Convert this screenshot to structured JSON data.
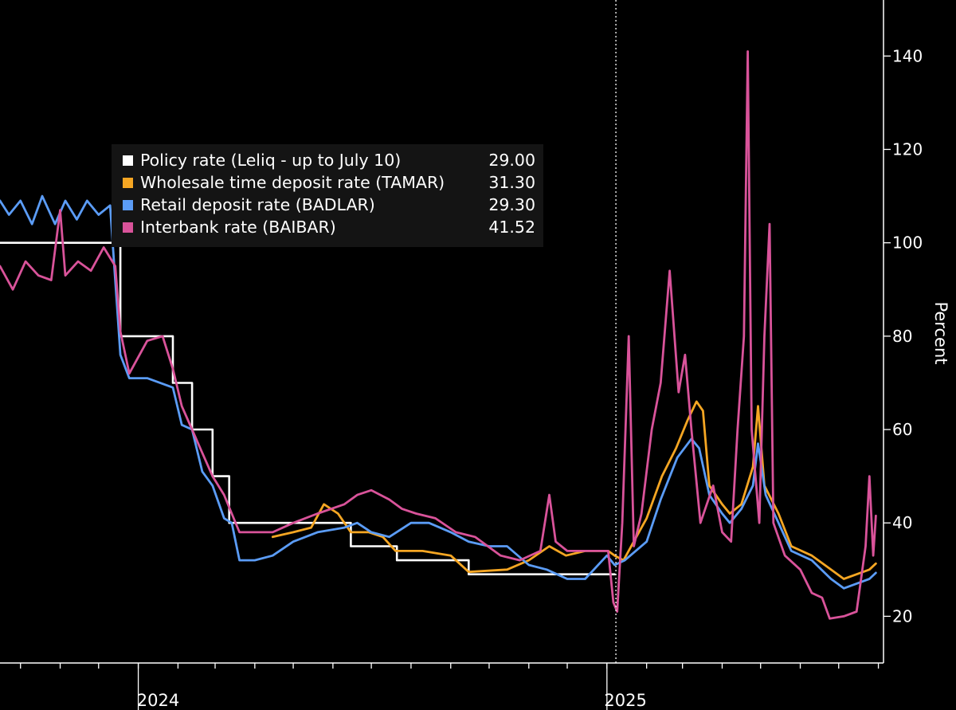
{
  "chart_data": {
    "type": "line",
    "title": "",
    "ylabel": "Percent",
    "ylim": [
      10,
      152
    ],
    "xlim": [
      "2023-09-15",
      "2025-08-05"
    ],
    "x_tick_labels": [
      {
        "label": "2024",
        "date": "2024-06-30"
      },
      {
        "label": "2025",
        "date": "2025-06-30"
      }
    ],
    "y_ticks": [
      20,
      40,
      60,
      80,
      100,
      120,
      140
    ],
    "marker_line": {
      "date": "2025-01-08",
      "style": "dotted"
    },
    "grid": false,
    "legend": {
      "placement": "top-left"
    },
    "colors": {
      "background": "#000000",
      "axis": "#ffffff"
    },
    "series": [
      {
        "name": "Policy rate (Leliq - up to July 10)",
        "latest": "29.00",
        "color": "#ffffff",
        "step": true,
        "points": [
          [
            "2023-09-15",
            100
          ],
          [
            "2023-12-18",
            80
          ],
          [
            "2024-01-28",
            70
          ],
          [
            "2024-02-12",
            60
          ],
          [
            "2024-02-28",
            50
          ],
          [
            "2024-03-12",
            40
          ],
          [
            "2024-05-02",
            40
          ],
          [
            "2024-06-15",
            35
          ],
          [
            "2024-07-21",
            32
          ],
          [
            "2024-09-15",
            29
          ],
          [
            "2025-01-07",
            29
          ]
        ]
      },
      {
        "name": "Wholesale time deposit rate (TAMAR)",
        "latest": "31.30",
        "color": "#f5a623",
        "step": false,
        "points": [
          [
            "2024-04-15",
            37
          ],
          [
            "2024-05-01",
            38
          ],
          [
            "2024-05-15",
            39
          ],
          [
            "2024-05-25",
            44
          ],
          [
            "2024-06-05",
            42
          ],
          [
            "2024-06-15",
            38
          ],
          [
            "2024-06-29",
            38
          ],
          [
            "2024-07-10",
            37
          ],
          [
            "2024-07-20",
            34
          ],
          [
            "2024-08-10",
            34
          ],
          [
            "2024-09-01",
            33
          ],
          [
            "2024-09-15",
            29.5
          ],
          [
            "2024-10-15",
            30
          ],
          [
            "2024-11-01",
            32
          ],
          [
            "2024-11-17",
            35
          ],
          [
            "2024-11-30",
            33
          ],
          [
            "2024-12-15",
            34
          ],
          [
            "2025-01-02",
            34
          ],
          [
            "2025-01-07",
            33
          ],
          [
            "2025-01-14",
            32
          ],
          [
            "2025-01-26",
            38
          ],
          [
            "2025-02-01",
            41
          ],
          [
            "2025-02-13",
            50
          ],
          [
            "2025-02-24",
            56
          ],
          [
            "2025-03-05",
            62
          ],
          [
            "2025-03-12",
            66
          ],
          [
            "2025-03-17",
            64
          ],
          [
            "2025-03-22",
            48
          ],
          [
            "2025-04-01",
            44
          ],
          [
            "2025-04-07",
            42
          ],
          [
            "2025-04-16",
            44
          ],
          [
            "2025-04-25",
            52
          ],
          [
            "2025-04-29",
            65
          ],
          [
            "2025-05-04",
            48
          ],
          [
            "2025-05-15",
            42
          ],
          [
            "2025-05-25",
            35
          ],
          [
            "2025-06-10",
            33
          ],
          [
            "2025-06-25",
            30
          ],
          [
            "2025-07-05",
            28
          ],
          [
            "2025-07-15",
            29
          ],
          [
            "2025-07-25",
            30
          ],
          [
            "2025-07-30",
            31.3
          ]
        ]
      },
      {
        "name": "Retail deposit rate (BADLAR)",
        "latest": "29.30",
        "color": "#5b9cf6",
        "step": false,
        "points": [
          [
            "2023-09-15",
            109
          ],
          [
            "2023-09-22",
            106
          ],
          [
            "2023-10-01",
            109
          ],
          [
            "2023-10-10",
            104
          ],
          [
            "2023-10-18",
            110
          ],
          [
            "2023-10-28",
            104
          ],
          [
            "2023-11-05",
            109
          ],
          [
            "2023-11-14",
            105
          ],
          [
            "2023-11-22",
            109
          ],
          [
            "2023-12-01",
            106
          ],
          [
            "2023-12-10",
            108
          ],
          [
            "2023-12-18",
            76
          ],
          [
            "2023-12-25",
            71
          ],
          [
            "2024-01-08",
            71
          ],
          [
            "2024-01-28",
            69
          ],
          [
            "2024-02-04",
            61
          ],
          [
            "2024-02-12",
            60
          ],
          [
            "2024-02-20",
            51
          ],
          [
            "2024-02-28",
            48
          ],
          [
            "2024-03-08",
            41
          ],
          [
            "2024-03-14",
            40
          ],
          [
            "2024-03-20",
            32
          ],
          [
            "2024-04-01",
            32
          ],
          [
            "2024-04-15",
            33
          ],
          [
            "2024-05-01",
            36
          ],
          [
            "2024-05-20",
            38
          ],
          [
            "2024-06-10",
            39
          ],
          [
            "2024-06-20",
            40
          ],
          [
            "2024-07-01",
            38
          ],
          [
            "2024-07-15",
            37
          ],
          [
            "2024-08-01",
            40
          ],
          [
            "2024-08-15",
            40
          ],
          [
            "2024-09-01",
            38
          ],
          [
            "2024-09-15",
            36
          ],
          [
            "2024-10-01",
            35
          ],
          [
            "2024-10-15",
            35
          ],
          [
            "2024-11-01",
            31
          ],
          [
            "2024-11-15",
            30
          ],
          [
            "2024-12-01",
            28
          ],
          [
            "2024-12-15",
            28
          ],
          [
            "2025-01-01",
            33
          ],
          [
            "2025-01-07",
            31
          ],
          [
            "2025-01-15",
            32
          ],
          [
            "2025-02-01",
            36
          ],
          [
            "2025-02-12",
            45
          ],
          [
            "2025-02-25",
            54
          ],
          [
            "2025-03-08",
            58
          ],
          [
            "2025-03-14",
            56
          ],
          [
            "2025-03-22",
            46
          ],
          [
            "2025-04-01",
            42
          ],
          [
            "2025-04-07",
            40
          ],
          [
            "2025-04-16",
            43
          ],
          [
            "2025-04-25",
            48
          ],
          [
            "2025-04-29",
            57
          ],
          [
            "2025-05-05",
            46
          ],
          [
            "2025-05-15",
            40
          ],
          [
            "2025-05-25",
            34
          ],
          [
            "2025-06-10",
            32
          ],
          [
            "2025-06-25",
            28
          ],
          [
            "2025-07-05",
            26
          ],
          [
            "2025-07-15",
            27
          ],
          [
            "2025-07-25",
            28
          ],
          [
            "2025-07-30",
            29.3
          ]
        ]
      },
      {
        "name": "Interbank rate (BAIBAR)",
        "latest": "41.52",
        "color": "#d9539a",
        "step": false,
        "points": [
          [
            "2023-09-15",
            95
          ],
          [
            "2023-09-25",
            90
          ],
          [
            "2023-10-05",
            96
          ],
          [
            "2023-10-15",
            93
          ],
          [
            "2023-10-25",
            92
          ],
          [
            "2023-11-01",
            107
          ],
          [
            "2023-11-05",
            93
          ],
          [
            "2023-11-15",
            96
          ],
          [
            "2023-11-25",
            94
          ],
          [
            "2023-12-05",
            99
          ],
          [
            "2023-12-14",
            95
          ],
          [
            "2023-12-18",
            81
          ],
          [
            "2023-12-25",
            72
          ],
          [
            "2024-01-08",
            79
          ],
          [
            "2024-01-20",
            80
          ],
          [
            "2024-01-28",
            73
          ],
          [
            "2024-02-04",
            65
          ],
          [
            "2024-02-12",
            60
          ],
          [
            "2024-02-20",
            55
          ],
          [
            "2024-02-28",
            50
          ],
          [
            "2024-03-08",
            46
          ],
          [
            "2024-03-14",
            42
          ],
          [
            "2024-03-20",
            38
          ],
          [
            "2024-04-01",
            38
          ],
          [
            "2024-04-15",
            38
          ],
          [
            "2024-05-01",
            40
          ],
          [
            "2024-05-20",
            42
          ],
          [
            "2024-06-10",
            44
          ],
          [
            "2024-06-20",
            46
          ],
          [
            "2024-07-01",
            47
          ],
          [
            "2024-07-15",
            45
          ],
          [
            "2024-07-25",
            43
          ],
          [
            "2024-08-05",
            42
          ],
          [
            "2024-08-20",
            41
          ],
          [
            "2024-09-05",
            38
          ],
          [
            "2024-09-20",
            37
          ],
          [
            "2024-10-10",
            33
          ],
          [
            "2024-10-25",
            32
          ],
          [
            "2024-11-10",
            34
          ],
          [
            "2024-11-17",
            46
          ],
          [
            "2024-11-22",
            36
          ],
          [
            "2024-12-01",
            34
          ],
          [
            "2024-12-15",
            34
          ],
          [
            "2025-01-02",
            34
          ],
          [
            "2025-01-06",
            23
          ],
          [
            "2025-01-09",
            21
          ],
          [
            "2025-01-13",
            40
          ],
          [
            "2025-01-18",
            80
          ],
          [
            "2025-01-22",
            35
          ],
          [
            "2025-01-28",
            42
          ],
          [
            "2025-02-05",
            60
          ],
          [
            "2025-02-12",
            70
          ],
          [
            "2025-02-19",
            94
          ],
          [
            "2025-02-26",
            68
          ],
          [
            "2025-03-03",
            76
          ],
          [
            "2025-03-08",
            60
          ],
          [
            "2025-03-15",
            40
          ],
          [
            "2025-03-25",
            48
          ],
          [
            "2025-04-01",
            38
          ],
          [
            "2025-04-08",
            36
          ],
          [
            "2025-04-13",
            60
          ],
          [
            "2025-04-18",
            80
          ],
          [
            "2025-04-21",
            141
          ],
          [
            "2025-04-24",
            60
          ],
          [
            "2025-04-30",
            40
          ],
          [
            "2025-05-04",
            80
          ],
          [
            "2025-05-08",
            104
          ],
          [
            "2025-05-11",
            40
          ],
          [
            "2025-05-20",
            33
          ],
          [
            "2025-06-01",
            30
          ],
          [
            "2025-06-10",
            25
          ],
          [
            "2025-06-18",
            24
          ],
          [
            "2025-06-24",
            19.5
          ],
          [
            "2025-07-05",
            20
          ],
          [
            "2025-07-15",
            21
          ],
          [
            "2025-07-22",
            35
          ],
          [
            "2025-07-25",
            50
          ],
          [
            "2025-07-28",
            33
          ],
          [
            "2025-07-30",
            41.52
          ]
        ]
      }
    ]
  }
}
